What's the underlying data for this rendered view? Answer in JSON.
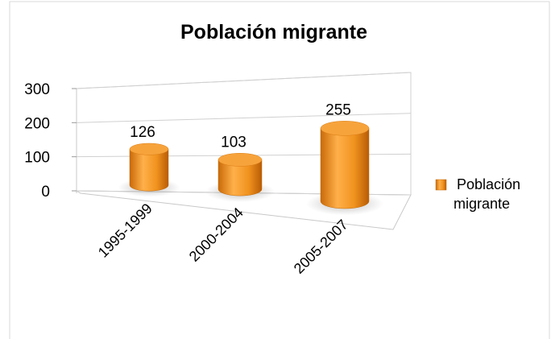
{
  "chart_data": {
    "type": "bar3d",
    "title": "Población migrante",
    "categories": [
      "1995-1999",
      "2000-2004",
      "2005-2007"
    ],
    "series": [
      {
        "name": "Población migrante",
        "color": "#f0921e",
        "values": [
          126,
          103,
          255
        ]
      }
    ],
    "ylim": [
      0,
      300
    ],
    "yticks": [
      0,
      100,
      200,
      300
    ],
    "grid": true,
    "legend": "right"
  }
}
